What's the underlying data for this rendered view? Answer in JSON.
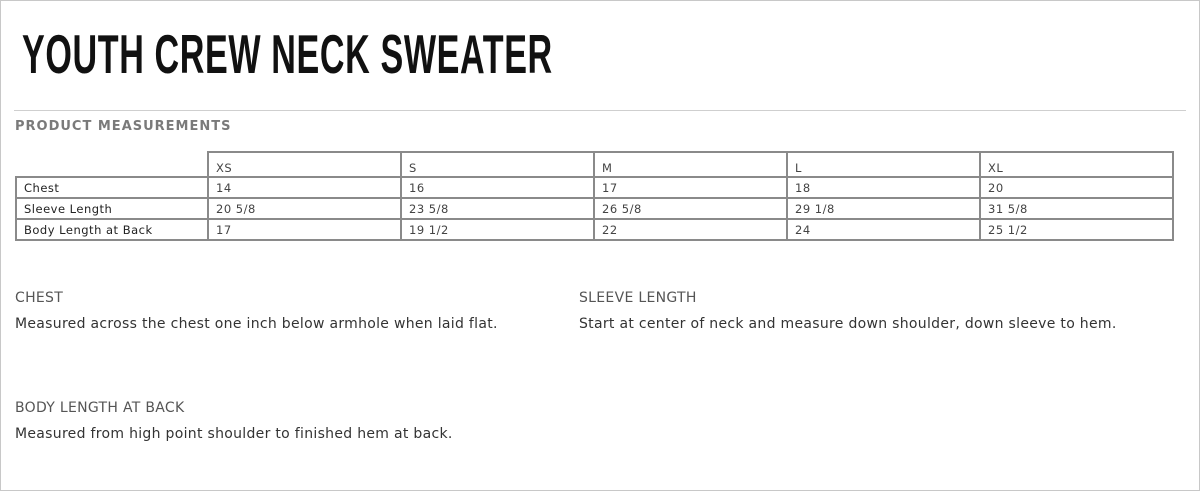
{
  "title": "YOUTH CREW NECK SWEATER",
  "section": "PRODUCT MEASUREMENTS",
  "table": {
    "columns": [
      "XS",
      "S",
      "M",
      "L",
      "XL"
    ],
    "rows": [
      {
        "label": "Chest",
        "values": [
          "14",
          "16",
          "17",
          "18",
          "20"
        ]
      },
      {
        "label": "Sleeve Length",
        "values": [
          "20 5/8",
          "23 5/8",
          "26 5/8",
          "29 1/8",
          "31 5/8"
        ]
      },
      {
        "label": "Body Length at Back",
        "values": [
          "17",
          "19 1/2",
          "22",
          "24",
          "25 1/2"
        ]
      }
    ]
  },
  "descriptions": [
    {
      "heading": "CHEST",
      "text": "Measured across the chest one inch below armhole when laid flat."
    },
    {
      "heading": "SLEEVE LENGTH",
      "text": "Start at center of neck and measure down shoulder, down sleeve to hem."
    },
    {
      "heading": "BODY LENGTH AT BACK",
      "text": "Measured from high point shoulder to finished hem at back."
    }
  ]
}
